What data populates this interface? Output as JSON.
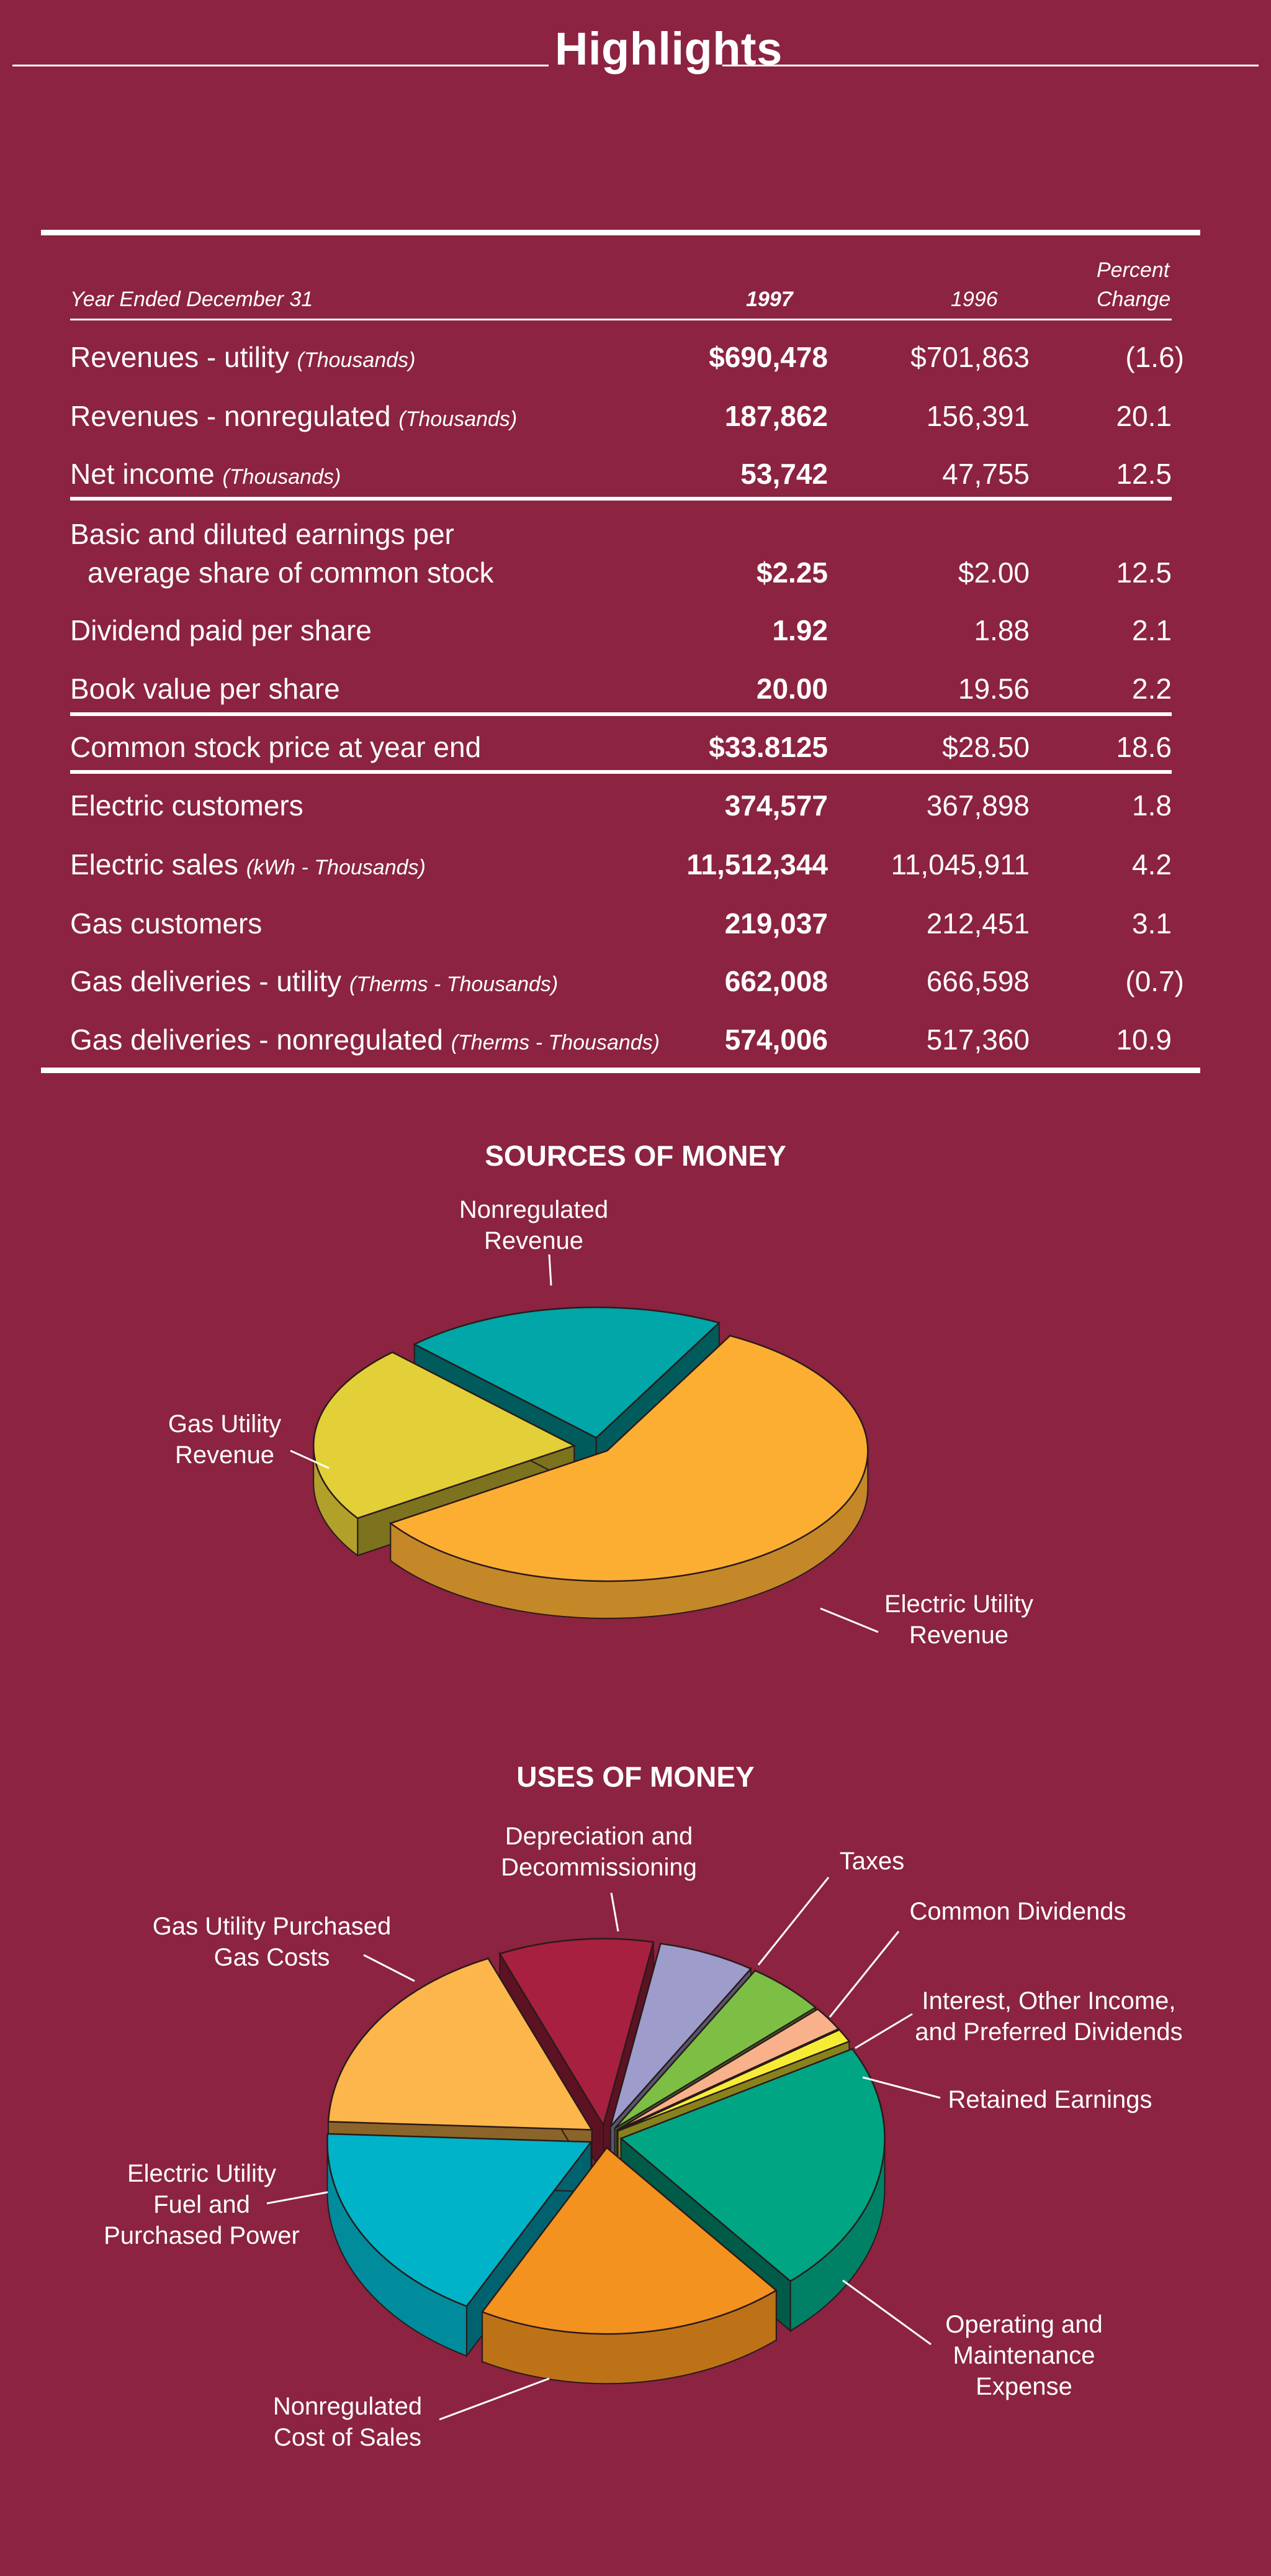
{
  "page": {
    "title": "Highlights"
  },
  "highlights_table": {
    "header": {
      "period": "Year Ended December 31",
      "col_1997": "1997",
      "col_1996": "1996",
      "col_pct_line1": "Percent",
      "col_pct_line2": "Change"
    },
    "rows": [
      {
        "label": "Revenues - utility",
        "unit": "(Thousands)",
        "v1997": "$690,478",
        "v1996": "$701,863",
        "pct": "(1.6)"
      },
      {
        "label": "Revenues - nonregulated",
        "unit": "(Thousands)",
        "v1997": "187,862",
        "v1996": "156,391",
        "pct": "20.1"
      },
      {
        "label": "Net income",
        "unit": "(Thousands)",
        "v1997": "53,742",
        "v1996": "47,755",
        "pct": "12.5"
      },
      {
        "label_line1": "Basic and diluted earnings per",
        "label_line2": "average share of common stock",
        "v1997": "$2.25",
        "v1996": "$2.00",
        "pct": "12.5"
      },
      {
        "label": "Dividend paid per share",
        "v1997": "1.92",
        "v1996": "1.88",
        "pct": "2.1"
      },
      {
        "label": "Book value per share",
        "v1997": "20.00",
        "v1996": "19.56",
        "pct": "2.2"
      },
      {
        "label": "Common stock price at year end",
        "v1997": "$33.8125",
        "v1996": "$28.50",
        "pct": "18.6"
      },
      {
        "label": "Electric customers",
        "v1997": "374,577",
        "v1996": "367,898",
        "pct": "1.8"
      },
      {
        "label": "Electric sales",
        "unit": "(kWh - Thousands)",
        "v1997": "11,512,344",
        "v1996": "11,045,911",
        "pct": "4.2"
      },
      {
        "label": "Gas customers",
        "v1997": "219,037",
        "v1996": "212,451",
        "pct": "3.1"
      },
      {
        "label": "Gas deliveries - utility",
        "unit": "(Therms - Thousands)",
        "v1997": "662,008",
        "v1996": "666,598",
        "pct": "(0.7)"
      },
      {
        "label": "Gas deliveries - nonregulated",
        "unit": "(Therms - Thousands)",
        "v1997": "574,006",
        "v1996": "517,360",
        "pct": "10.9"
      }
    ]
  },
  "chart_data": [
    {
      "type": "pie",
      "title": "SOURCES OF MONEY",
      "categories": [
        "Electric Utility Revenue",
        "Gas Utility Revenue",
        "Nonregulated Revenue"
      ],
      "values": [
        57.8,
        22.1,
        20.1
      ],
      "labels_display": [
        [
          "Electric Utility",
          "Revenue"
        ],
        [
          "Gas Utility",
          "Revenue"
        ],
        [
          "Nonregulated",
          "Revenue"
        ]
      ],
      "colors": [
        "#fcae33",
        "#e3cf37",
        "#00a6a8"
      ]
    },
    {
      "type": "pie",
      "title": "USES OF MONEY",
      "categories": [
        "Taxes",
        "Common Dividends",
        "Interest, Other Income, and Preferred Dividends",
        "Retained Earnings",
        "Operating and Maintenance Expense",
        "Nonregulated Cost of Sales",
        "Electric Utility Fuel and Purchased Power",
        "Gas Utility Purchased Gas Costs",
        "Depreciation and Decommissioning"
      ],
      "values": [
        5.6,
        4.6,
        2.0,
        1.1,
        20.8,
        18.0,
        17.0,
        17.0,
        9.0
      ],
      "labels_display": [
        [
          "Taxes"
        ],
        [
          "Common Dividends"
        ],
        [
          "Interest, Other Income,",
          "and Preferred Dividends"
        ],
        [
          "Retained Earnings"
        ],
        [
          "Operating and",
          "Maintenance",
          "Expense"
        ],
        [
          "Nonregulated",
          "Cost of Sales"
        ],
        [
          "Electric Utility",
          "Fuel and",
          "Purchased Power"
        ],
        [
          "Gas Utility Purchased",
          "Gas Costs"
        ],
        [
          "Depreciation and",
          "Decommissioning"
        ]
      ],
      "colors": [
        "#9d9ccb",
        "#7cbf44",
        "#f9b18b",
        "#f7ec35",
        "#00a583",
        "#f3921f",
        "#00b3c9",
        "#fdb64b",
        "#a7203f"
      ]
    }
  ]
}
